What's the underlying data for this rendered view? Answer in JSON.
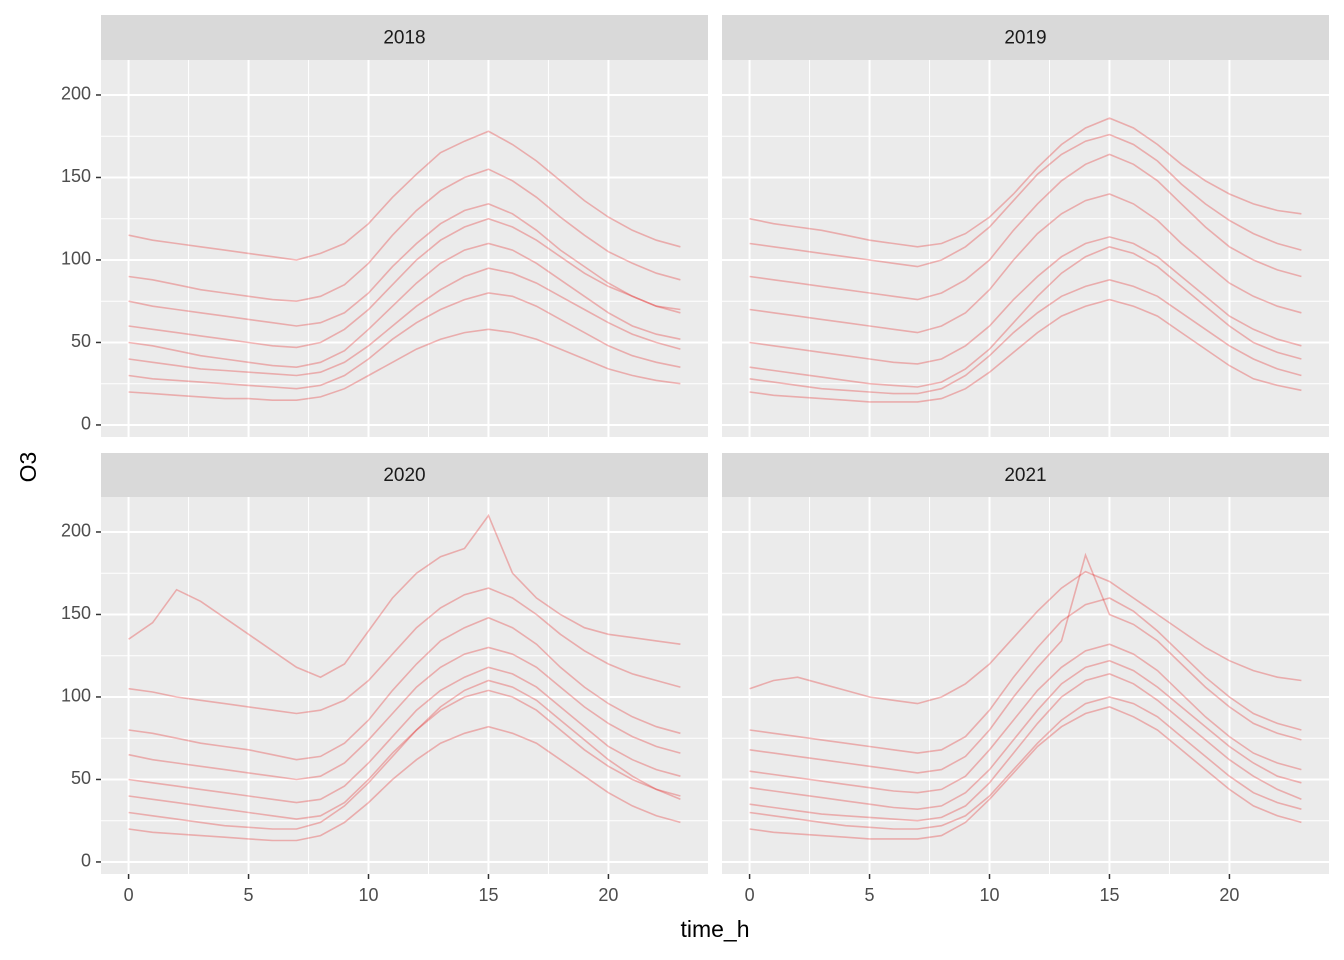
{
  "chart_data": {
    "type": "line",
    "x_label": "time_h",
    "y_label": "O3",
    "x": [
      0,
      1,
      2,
      3,
      4,
      5,
      6,
      7,
      8,
      9,
      10,
      11,
      12,
      13,
      14,
      15,
      16,
      17,
      18,
      19,
      20,
      21,
      22,
      23
    ],
    "xlim": [
      -1.15,
      24.15
    ],
    "xticks": [
      0,
      5,
      10,
      15,
      20
    ],
    "ylim": [
      -7.3,
      221.2
    ],
    "yticks": [
      0,
      50,
      100,
      150,
      200
    ],
    "grid": true,
    "color": "#e31a1c",
    "panels": [
      {
        "title": "2018",
        "series": [
          {
            "values": [
              40,
              38,
              36,
              34,
              33,
              32,
              31,
              30,
              32,
              38,
              48,
              60,
              72,
              82,
              90,
              95,
              92,
              86,
              78,
              70,
              62,
              55,
              50,
              46
            ]
          },
          {
            "values": [
              60,
              58,
              56,
              54,
              52,
              50,
              48,
              47,
              50,
              58,
              70,
              85,
              100,
              112,
              120,
              125,
              120,
              112,
              102,
              92,
              84,
              78,
              72,
              68
            ]
          },
          {
            "values": [
              30,
              28,
              27,
              26,
              25,
              24,
              23,
              22,
              24,
              30,
              40,
              52,
              62,
              70,
              76,
              80,
              78,
              72,
              64,
              56,
              48,
              42,
              38,
              35
            ]
          },
          {
            "values": [
              90,
              88,
              85,
              82,
              80,
              78,
              76,
              75,
              78,
              85,
              98,
              115,
              130,
              142,
              150,
              155,
              148,
              138,
              126,
              115,
              105,
              98,
              92,
              88
            ]
          },
          {
            "values": [
              20,
              19,
              18,
              17,
              16,
              16,
              15,
              15,
              17,
              22,
              30,
              38,
              46,
              52,
              56,
              58,
              56,
              52,
              46,
              40,
              34,
              30,
              27,
              25
            ]
          },
          {
            "values": [
              115,
              112,
              110,
              108,
              106,
              104,
              102,
              100,
              104,
              110,
              122,
              138,
              152,
              165,
              172,
              178,
              170,
              160,
              148,
              136,
              126,
              118,
              112,
              108
            ]
          },
          {
            "values": [
              50,
              48,
              45,
              42,
              40,
              38,
              36,
              35,
              38,
              45,
              58,
              72,
              86,
              98,
              106,
              110,
              106,
              98,
              88,
              78,
              68,
              60,
              55,
              52
            ]
          },
          {
            "values": [
              75,
              72,
              70,
              68,
              66,
              64,
              62,
              60,
              62,
              68,
              80,
              96,
              110,
              122,
              130,
              134,
              128,
              118,
              106,
              96,
              86,
              78,
              72,
              70
            ]
          }
        ]
      },
      {
        "title": "2019",
        "series": [
          {
            "values": [
              35,
              33,
              31,
              29,
              27,
              25,
              24,
              23,
              26,
              34,
              46,
              62,
              78,
              92,
              102,
              108,
              104,
              96,
              84,
              72,
              60,
              50,
              44,
              40
            ]
          },
          {
            "values": [
              110,
              108,
              106,
              104,
              102,
              100,
              98,
              96,
              100,
              108,
              120,
              136,
              152,
              164,
              172,
              176,
              170,
              160,
              146,
              134,
              124,
              116,
              110,
              106
            ]
          },
          {
            "values": [
              20,
              18,
              17,
              16,
              15,
              14,
              14,
              14,
              16,
              22,
              32,
              44,
              56,
              66,
              72,
              76,
              72,
              66,
              56,
              46,
              36,
              28,
              24,
              21
            ]
          },
          {
            "values": [
              70,
              68,
              66,
              64,
              62,
              60,
              58,
              56,
              60,
              68,
              82,
              100,
              116,
              128,
              136,
              140,
              134,
              124,
              110,
              98,
              86,
              78,
              72,
              68
            ]
          },
          {
            "values": [
              50,
              48,
              46,
              44,
              42,
              40,
              38,
              37,
              40,
              48,
              60,
              76,
              90,
              102,
              110,
              114,
              110,
              102,
              90,
              78,
              66,
              58,
              52,
              48
            ]
          },
          {
            "values": [
              90,
              88,
              86,
              84,
              82,
              80,
              78,
              76,
              80,
              88,
              100,
              118,
              134,
              148,
              158,
              164,
              158,
              148,
              134,
              120,
              108,
              100,
              94,
              90
            ]
          },
          {
            "values": [
              28,
              26,
              24,
              22,
              21,
              20,
              19,
              19,
              22,
              30,
              42,
              56,
              68,
              78,
              84,
              88,
              84,
              78,
              68,
              58,
              48,
              40,
              34,
              30
            ]
          },
          {
            "values": [
              125,
              122,
              120,
              118,
              115,
              112,
              110,
              108,
              110,
              116,
              126,
              140,
              156,
              170,
              180,
              186,
              180,
              170,
              158,
              148,
              140,
              134,
              130,
              128
            ]
          }
        ]
      },
      {
        "title": "2020",
        "series": [
          {
            "values": [
              30,
              28,
              26,
              24,
              22,
              21,
              20,
              20,
              24,
              34,
              48,
              64,
              80,
              94,
              104,
              110,
              106,
              98,
              86,
              74,
              62,
              52,
              44,
              38
            ]
          },
          {
            "values": [
              80,
              78,
              75,
              72,
              70,
              68,
              65,
              62,
              64,
              72,
              86,
              104,
              120,
              134,
              142,
              148,
              142,
              132,
              118,
              106,
              96,
              88,
              82,
              78
            ]
          },
          {
            "values": [
              20,
              18,
              17,
              16,
              15,
              14,
              13,
              13,
              16,
              24,
              36,
              50,
              62,
              72,
              78,
              82,
              78,
              72,
              62,
              52,
              42,
              34,
              28,
              24
            ]
          },
          {
            "values": [
              105,
              103,
              100,
              98,
              96,
              94,
              92,
              90,
              92,
              98,
              110,
              126,
              142,
              154,
              162,
              166,
              160,
              150,
              138,
              128,
              120,
              114,
              110,
              106
            ]
          },
          {
            "values": [
              50,
              48,
              46,
              44,
              42,
              40,
              38,
              36,
              38,
              46,
              60,
              76,
              92,
              104,
              112,
              118,
              114,
              106,
              94,
              82,
              70,
              62,
              56,
              52
            ]
          },
          {
            "values": [
              135,
              145,
              165,
              158,
              148,
              138,
              128,
              118,
              112,
              120,
              140,
              160,
              175,
              185,
              190,
              210,
              175,
              160,
              150,
              142,
              138,
              136,
              134,
              132
            ]
          },
          {
            "values": [
              65,
              62,
              60,
              58,
              56,
              54,
              52,
              50,
              52,
              60,
              74,
              90,
              106,
              118,
              126,
              130,
              126,
              118,
              106,
              94,
              84,
              76,
              70,
              66
            ]
          },
          {
            "values": [
              40,
              38,
              36,
              34,
              32,
              30,
              28,
              26,
              28,
              36,
              50,
              66,
              80,
              92,
              100,
              104,
              100,
              92,
              80,
              68,
              58,
              50,
              44,
              40
            ]
          }
        ]
      },
      {
        "title": "2021",
        "series": [
          {
            "values": [
              35,
              33,
              31,
              29,
              28,
              27,
              26,
              25,
              27,
              34,
              48,
              66,
              84,
              100,
              110,
              114,
              108,
              98,
              86,
              74,
              62,
              52,
              44,
              38
            ]
          },
          {
            "values": [
              80,
              78,
              76,
              74,
              72,
              70,
              68,
              66,
              68,
              76,
              92,
              112,
              130,
              146,
              156,
              160,
              152,
              140,
              126,
              112,
              100,
              90,
              84,
              80
            ]
          },
          {
            "values": [
              20,
              18,
              17,
              16,
              15,
              14,
              14,
              14,
              16,
              24,
              38,
              54,
              70,
              82,
              90,
              94,
              88,
              80,
              68,
              56,
              44,
              34,
              28,
              24
            ]
          },
          {
            "values": [
              105,
              110,
              112,
              108,
              104,
              100,
              98,
              96,
              100,
              108,
              120,
              136,
              152,
              166,
              176,
              170,
              160,
              150,
              140,
              130,
              122,
              116,
              112,
              110
            ]
          },
          {
            "values": [
              55,
              53,
              51,
              49,
              47,
              45,
              43,
              42,
              44,
              52,
              68,
              86,
              104,
              118,
              128,
              132,
              126,
              116,
              102,
              88,
              76,
              66,
              60,
              56
            ]
          },
          {
            "values": [
              30,
              28,
              26,
              24,
              22,
              21,
              20,
              20,
              22,
              28,
              40,
              56,
              72,
              86,
              96,
              100,
              96,
              88,
              76,
              64,
              52,
              42,
              36,
              32
            ]
          },
          {
            "values": [
              68,
              66,
              64,
              62,
              60,
              58,
              56,
              54,
              56,
              64,
              80,
              100,
              118,
              134,
              186,
              150,
              144,
              134,
              120,
              106,
              94,
              84,
              78,
              74
            ]
          },
          {
            "values": [
              45,
              43,
              41,
              39,
              37,
              35,
              33,
              32,
              34,
              42,
              56,
              74,
              92,
              108,
              118,
              122,
              116,
              106,
              94,
              82,
              70,
              60,
              52,
              48
            ]
          }
        ]
      }
    ]
  }
}
